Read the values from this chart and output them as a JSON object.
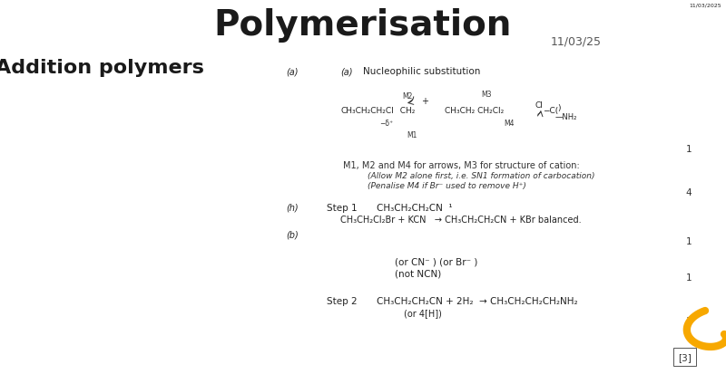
{
  "title": "Polymerisation",
  "date": "11/03/25",
  "small_date": "11/03/2025",
  "header_bg": "#F7D842",
  "header_text_color": "#1a1a1a",
  "body_bg": "#FFFFFF",
  "left_heading": "Addition polymers",
  "left_heading_color": "#1a1a1a",
  "curl_color": "#F7A800"
}
